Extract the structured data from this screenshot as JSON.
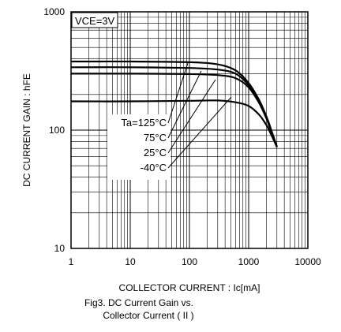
{
  "chart_data": {
    "type": "line",
    "title": "",
    "xlabel": "COLLECTOR CURRENT : Ic[mA]",
    "ylabel": "DC CURRENT GAIN : hFE",
    "xscale": "log",
    "yscale": "log",
    "xlim": [
      1,
      10000
    ],
    "ylim": [
      10,
      1000
    ],
    "xticks": [
      "1",
      "10",
      "100",
      "1000",
      "10000"
    ],
    "yticks": [
      "10",
      "100",
      "1000"
    ],
    "grid": true,
    "condition_label": "VCE=3V",
    "series": [
      {
        "name": "Ta=125°C",
        "x": [
          1,
          10,
          100,
          300,
          600,
          1000,
          1500,
          2000,
          2500,
          3000
        ],
        "y": [
          380,
          380,
          375,
          360,
          320,
          250,
          180,
          130,
          95,
          72
        ]
      },
      {
        "name": "75°C",
        "x": [
          1,
          10,
          100,
          300,
          600,
          1000,
          1500,
          2000,
          2500,
          3000
        ],
        "y": [
          340,
          340,
          335,
          325,
          300,
          240,
          175,
          128,
          93,
          72
        ]
      },
      {
        "name": "25°C",
        "x": [
          1,
          10,
          100,
          300,
          600,
          1000,
          1500,
          2000,
          2500,
          3000
        ],
        "y": [
          300,
          300,
          298,
          292,
          275,
          230,
          170,
          125,
          92,
          72
        ]
      },
      {
        "name": "-40°C",
        "x": [
          1,
          10,
          100,
          300,
          600,
          1000,
          1500,
          2000,
          2500,
          3000
        ],
        "y": [
          175,
          175,
          177,
          178,
          172,
          160,
          135,
          110,
          88,
          72
        ]
      }
    ],
    "annotations": [
      {
        "text": "Ta=125°C"
      },
      {
        "text": "75°C"
      },
      {
        "text": "25°C"
      },
      {
        "text": "-40°C"
      }
    ]
  },
  "caption": {
    "line1": "Fig3. DC Current Gain vs.",
    "line2": "Collector Current ( II )"
  }
}
